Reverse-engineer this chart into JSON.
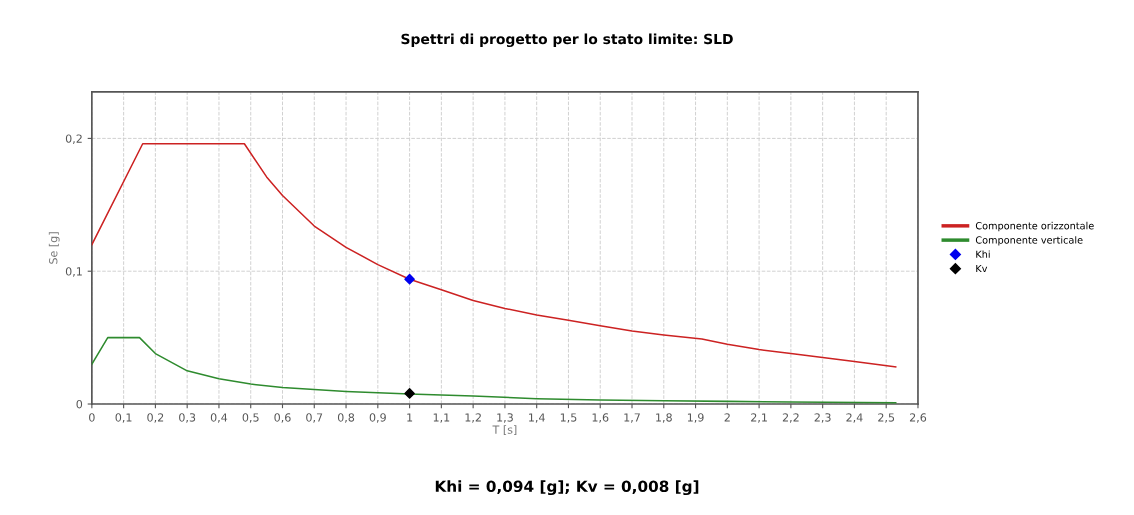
{
  "chart_data": {
    "type": "line",
    "title": "Spettri di progetto per lo stato limite: SLD",
    "xlabel": "T [s]",
    "ylabel": "Se [g]",
    "series": [
      {
        "name": "Componente orizzontale",
        "color": "#cc2222",
        "x": [
          0,
          0.16,
          0.48,
          0.55,
          0.6,
          0.7,
          0.8,
          0.9,
          1.0,
          1.1,
          1.2,
          1.3,
          1.4,
          1.5,
          1.6,
          1.7,
          1.8,
          1.92,
          2.0,
          2.1,
          2.2,
          2.3,
          2.4,
          2.53
        ],
        "values": [
          0.12,
          0.196,
          0.196,
          0.171,
          0.157,
          0.134,
          0.118,
          0.105,
          0.094,
          0.086,
          0.078,
          0.072,
          0.067,
          0.063,
          0.059,
          0.055,
          0.052,
          0.049,
          0.045,
          0.041,
          0.038,
          0.035,
          0.032,
          0.028
        ]
      },
      {
        "name": "Componente verticale",
        "color": "#2e8b2e",
        "x": [
          0,
          0.05,
          0.15,
          0.2,
          0.3,
          0.4,
          0.5,
          0.6,
          0.7,
          0.8,
          0.9,
          1.0,
          1.2,
          1.4,
          1.6,
          1.8,
          2.0,
          2.2,
          2.53
        ],
        "values": [
          0.03,
          0.05,
          0.05,
          0.038,
          0.025,
          0.019,
          0.015,
          0.0125,
          0.011,
          0.0095,
          0.0085,
          0.0075,
          0.006,
          0.004,
          0.003,
          0.0025,
          0.002,
          0.0015,
          0.001
        ]
      },
      {
        "name": "Khi",
        "type": "scatter",
        "marker": "diamond",
        "color": "#0000ee",
        "x": [
          1.0
        ],
        "values": [
          0.094
        ]
      },
      {
        "name": "Kv",
        "type": "scatter",
        "marker": "diamond",
        "color": "#000000",
        "x": [
          1.0
        ],
        "values": [
          0.008
        ]
      }
    ],
    "xlim": [
      0,
      2.6
    ],
    "ylim": [
      0,
      0.235
    ],
    "xticks": [
      0,
      {
        "value": 0.1,
        "label": "0,1"
      },
      {
        "value": 0.2,
        "label": "0,2"
      },
      {
        "value": 0.3,
        "label": "0,3"
      },
      {
        "value": 0.4,
        "label": "0,4"
      },
      {
        "value": 0.5,
        "label": "0,5"
      },
      {
        "value": 0.6,
        "label": "0,6"
      },
      {
        "value": 0.7,
        "label": "0,7"
      },
      {
        "value": 0.8,
        "label": "0,8"
      },
      {
        "value": 0.9,
        "label": "0,9"
      },
      1,
      {
        "value": 1.1,
        "label": "1,1"
      },
      {
        "value": 1.2,
        "label": "1,2"
      },
      {
        "value": 1.3,
        "label": "1,3"
      },
      {
        "value": 1.4,
        "label": "1,4"
      },
      {
        "value": 1.5,
        "label": "1,5"
      },
      {
        "value": 1.6,
        "label": "1,6"
      },
      {
        "value": 1.7,
        "label": "1,7"
      },
      {
        "value": 1.8,
        "label": "1,8"
      },
      {
        "value": 1.9,
        "label": "1,9"
      },
      2,
      {
        "value": 2.1,
        "label": "2,1"
      },
      {
        "value": 2.2,
        "label": "2,2"
      },
      {
        "value": 2.3,
        "label": "2,3"
      },
      {
        "value": 2.4,
        "label": "2,4"
      },
      {
        "value": 2.5,
        "label": "2,5"
      },
      {
        "value": 2.6,
        "label": "2,6"
      }
    ],
    "yticks": [
      0,
      {
        "value": 0.1,
        "label": "0,1"
      },
      {
        "value": 0.2,
        "label": "0,2"
      }
    ],
    "grid": true,
    "legend": "right",
    "marker": "none",
    "line_style": "solid",
    "annotations": [
      "Khi = 0,094 [g]; Kv = 0,008 [g]"
    ]
  }
}
